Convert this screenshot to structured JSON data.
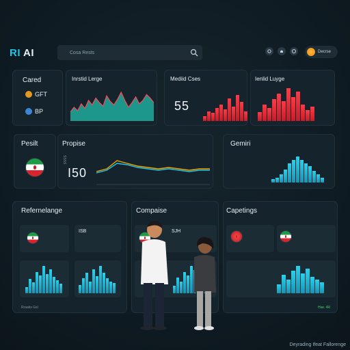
{
  "app": {
    "logo_ri": "RI",
    "logo_ai": "AI"
  },
  "search": {
    "placeholder": "Cosa Rests"
  },
  "header": {
    "user_label": "Decrse"
  },
  "card1": {
    "title": "Cared",
    "row1": "GFT",
    "row2": "BP"
  },
  "card2": {
    "title": "Inrstid Lerge"
  },
  "card3": {
    "title": "Mediid Cses",
    "value": "55"
  },
  "card4": {
    "title": "Ienlid Luyge"
  },
  "card5": {
    "title": "Pesilt"
  },
  "card6": {
    "title": "Propise",
    "value": "I50",
    "side": "SSSS"
  },
  "card7": {
    "title": "Gemiri"
  },
  "card8": {
    "title": "Refernelange",
    "tag": "ISB",
    "footer_left": "Rraatis Gsl"
  },
  "card9": {
    "title": "Compaise",
    "tag": "SJH"
  },
  "card10": {
    "title": "Capetings",
    "footer_right": "Hiar. 4R"
  },
  "watermark": "Deyrading Ifeat Fallorenge",
  "icons": [
    "search-icon",
    "settings-icon",
    "bell-icon",
    "info-icon",
    "user-avatar"
  ],
  "chart_data": [
    {
      "type": "area",
      "series": [
        {
          "values": [
            8,
            12,
            9,
            15,
            11,
            18,
            14,
            20,
            16,
            13,
            22,
            17,
            14,
            19,
            25,
            18,
            12,
            16,
            21,
            15,
            18,
            23,
            20,
            16
          ]
        }
      ]
    },
    {
      "type": "bar",
      "values": [
        3,
        6,
        5,
        8,
        10,
        7,
        14,
        9,
        16,
        12,
        6
      ]
    },
    {
      "type": "bar",
      "values": [
        5,
        9,
        7,
        12,
        15,
        11,
        18,
        13,
        16,
        9,
        6,
        8
      ]
    },
    {
      "type": "line",
      "series": [
        {
          "values": [
            10,
            12,
            18,
            16,
            14,
            13,
            12,
            13,
            12,
            11,
            12,
            12
          ]
        },
        {
          "values": [
            9,
            11,
            16,
            15,
            13,
            12,
            11,
            12,
            11,
            10,
            11,
            11
          ]
        }
      ]
    },
    {
      "type": "bar",
      "values": [
        2,
        3,
        5,
        8,
        12,
        14,
        16,
        14,
        12,
        10,
        7,
        5,
        3
      ]
    },
    {
      "type": "bar",
      "values": [
        4,
        9,
        7,
        13,
        11,
        17,
        12,
        15,
        10,
        8,
        6
      ]
    },
    {
      "type": "bar",
      "values": [
        5,
        9,
        12,
        7,
        14,
        10,
        16,
        12,
        9,
        7,
        6
      ]
    },
    {
      "type": "bar",
      "values": [
        4,
        8,
        6,
        11,
        9,
        14,
        12,
        10,
        8,
        6,
        5
      ]
    },
    {
      "type": "bar",
      "values": [
        6,
        12,
        9,
        15,
        18,
        13,
        16,
        11,
        9,
        7
      ]
    }
  ]
}
